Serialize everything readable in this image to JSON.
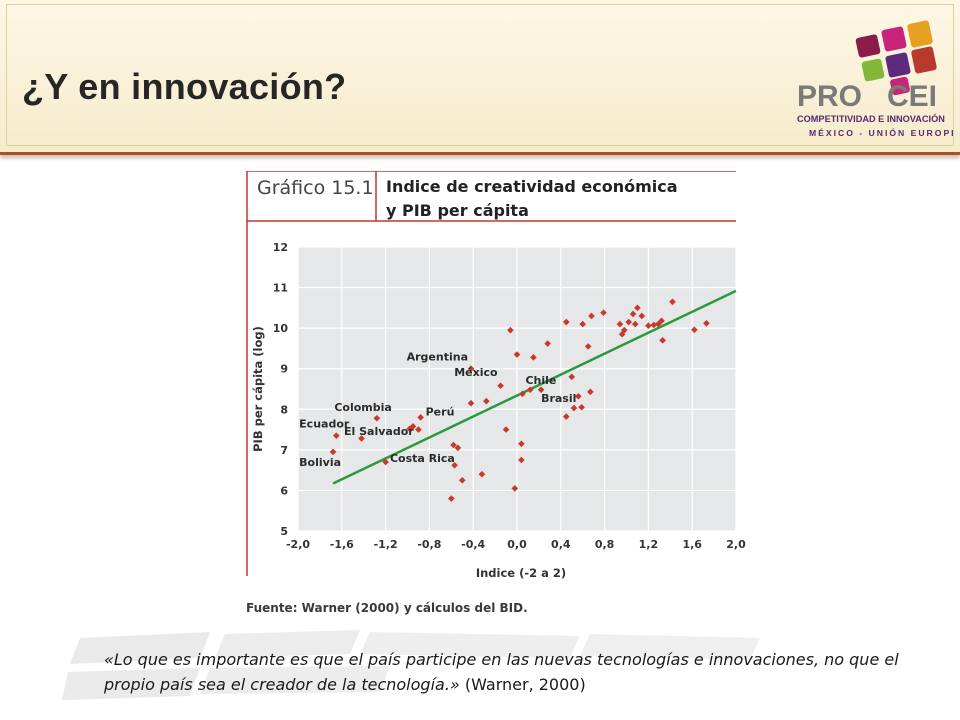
{
  "slide": {
    "title": "¿Y en innovación?"
  },
  "logo": {
    "text_left": "PRO",
    "text_right": "CEI",
    "line1": "COMPETITIVIDAD E INNOVACIÓN",
    "line2": "MÉXICO - UNIÓN EUROPEA",
    "colors": [
      "#8a1d47",
      "#c9247c",
      "#e6a122",
      "#84b63a",
      "#5c2b7b",
      "#b83a2c"
    ]
  },
  "figure": {
    "number": "Gráfico 15.1",
    "title_line1": "Indice de creatividad  económica",
    "title_line2": "y PIB per cápita",
    "source": "Fuente: Warner (2000) y cálculos del BID."
  },
  "chart_data": {
    "type": "scatter",
    "xlabel": "Indice (-2 a 2)",
    "ylabel": "PIB per cápita (log)",
    "xlim": [
      -2.0,
      2.0
    ],
    "ylim": [
      5,
      12
    ],
    "xticks": [
      "-2,0",
      "-1,6",
      "-1,2",
      "-0,8",
      "-0,4",
      "0,0",
      "0,4",
      "0,8",
      "1,2",
      "1,6",
      "2,0"
    ],
    "yticks": [
      "5",
      "6",
      "7",
      "8",
      "9",
      "10",
      "11",
      "12"
    ],
    "grid": true,
    "background": "#e6e7e8",
    "point_color": "#c8392b",
    "trend_color": "#2a9a3a",
    "trend_line": {
      "x": [
        -1.68,
        2.0
      ],
      "y": [
        6.17,
        10.92
      ]
    },
    "points": [
      {
        "x": -1.68,
        "y": 6.95
      },
      {
        "x": -1.65,
        "y": 7.35
      },
      {
        "x": -1.42,
        "y": 7.28
      },
      {
        "x": -1.28,
        "y": 7.78
      },
      {
        "x": -1.2,
        "y": 6.7
      },
      {
        "x": -0.98,
        "y": 7.52
      },
      {
        "x": -0.95,
        "y": 7.58
      },
      {
        "x": -0.9,
        "y": 7.5
      },
      {
        "x": -0.88,
        "y": 7.8
      },
      {
        "x": -0.6,
        "y": 5.8
      },
      {
        "x": -0.58,
        "y": 7.12
      },
      {
        "x": -0.57,
        "y": 6.62
      },
      {
        "x": -0.54,
        "y": 7.05
      },
      {
        "x": -0.5,
        "y": 6.25
      },
      {
        "x": -0.42,
        "y": 9.0
      },
      {
        "x": -0.42,
        "y": 8.15
      },
      {
        "x": -0.32,
        "y": 6.4
      },
      {
        "x": -0.28,
        "y": 8.2
      },
      {
        "x": -0.15,
        "y": 8.58
      },
      {
        "x": -0.1,
        "y": 7.5
      },
      {
        "x": -0.06,
        "y": 9.95
      },
      {
        "x": -0.02,
        "y": 6.05
      },
      {
        "x": 0.0,
        "y": 9.35
      },
      {
        "x": 0.04,
        "y": 6.75
      },
      {
        "x": 0.04,
        "y": 7.15
      },
      {
        "x": 0.05,
        "y": 8.38
      },
      {
        "x": 0.12,
        "y": 8.48
      },
      {
        "x": 0.15,
        "y": 9.28
      },
      {
        "x": 0.22,
        "y": 8.48
      },
      {
        "x": 0.28,
        "y": 9.62
      },
      {
        "x": 0.45,
        "y": 7.82
      },
      {
        "x": 0.45,
        "y": 10.15
      },
      {
        "x": 0.5,
        "y": 8.8
      },
      {
        "x": 0.52,
        "y": 8.03
      },
      {
        "x": 0.56,
        "y": 8.32
      },
      {
        "x": 0.59,
        "y": 8.05
      },
      {
        "x": 0.6,
        "y": 10.1
      },
      {
        "x": 0.65,
        "y": 9.55
      },
      {
        "x": 0.67,
        "y": 8.43
      },
      {
        "x": 0.68,
        "y": 10.3
      },
      {
        "x": 0.79,
        "y": 10.38
      },
      {
        "x": 0.94,
        "y": 10.1
      },
      {
        "x": 0.96,
        "y": 9.85
      },
      {
        "x": 0.98,
        "y": 9.95
      },
      {
        "x": 1.02,
        "y": 10.15
      },
      {
        "x": 1.06,
        "y": 10.35
      },
      {
        "x": 1.08,
        "y": 10.1
      },
      {
        "x": 1.1,
        "y": 10.5
      },
      {
        "x": 1.14,
        "y": 10.3
      },
      {
        "x": 1.2,
        "y": 10.06
      },
      {
        "x": 1.25,
        "y": 10.08
      },
      {
        "x": 1.29,
        "y": 10.1
      },
      {
        "x": 1.32,
        "y": 10.18
      },
      {
        "x": 1.33,
        "y": 9.7
      },
      {
        "x": 1.42,
        "y": 10.65
      },
      {
        "x": 1.62,
        "y": 9.96
      },
      {
        "x": 1.73,
        "y": 10.12
      }
    ],
    "annotations": [
      {
        "text": "Argentina",
        "x": -0.42,
        "y": 9.0
      },
      {
        "text": "México",
        "x": -0.15,
        "y": 8.58
      },
      {
        "text": "Chile",
        "x": 0.05,
        "y": 8.38
      },
      {
        "text": "Brasil",
        "x": 0.22,
        "y": 8.48
      },
      {
        "text": "Colombia",
        "x": -1.28,
        "y": 7.78
      },
      {
        "text": "Perú",
        "x": -0.88,
        "y": 7.8
      },
      {
        "text": "Ecuador",
        "x": -1.65,
        "y": 7.35
      },
      {
        "text": "El Salvador",
        "x": -0.98,
        "y": 7.52
      },
      {
        "text": "Costa Rica",
        "x": -0.54,
        "y": 7.05
      },
      {
        "text": "Bolivia",
        "x": -1.68,
        "y": 6.95
      }
    ]
  },
  "quote": {
    "body": "«Lo que es importante es que el país participe en las nuevas tecnologías e innovaciones, no que el propio país sea el creador de la tecnología.»",
    "citation": " (Warner, 2000)"
  }
}
